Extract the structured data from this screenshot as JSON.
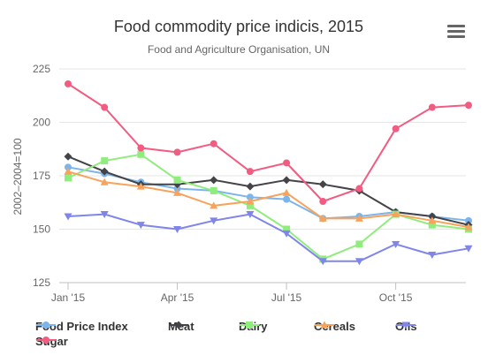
{
  "chart_data": {
    "type": "line",
    "title": "Food commodity price indicis, 2015",
    "subtitle": "Food and Agriculture Organisation, UN",
    "ylabel": "2002–2004=100",
    "xlabel": "",
    "ylim": [
      125,
      225
    ],
    "yticks": [
      125,
      150,
      175,
      200,
      225
    ],
    "x": [
      "2015-01",
      "2015-02",
      "2015-03",
      "2015-04",
      "2015-05",
      "2015-06",
      "2015-07",
      "2015-08",
      "2015-09",
      "2015-10",
      "2015-11",
      "2015-12"
    ],
    "xtick_labels": [
      {
        "x": "2015-01",
        "label": "Jan '15"
      },
      {
        "x": "2015-04",
        "label": "Apr '15"
      },
      {
        "x": "2015-07",
        "label": "Jul '15"
      },
      {
        "x": "2015-10",
        "label": "Oct '15"
      }
    ],
    "grid": true,
    "legend_position": "bottom",
    "series": [
      {
        "name": "Food Price Index",
        "color": "#7cb5ec",
        "marker": "circle",
        "values": [
          179,
          176,
          172,
          169,
          168,
          165,
          164,
          155,
          156,
          158,
          156,
          154
        ]
      },
      {
        "name": "Meat",
        "color": "#434348",
        "marker": "diamond",
        "values": [
          184,
          177,
          171,
          171,
          173,
          170,
          173,
          171,
          168,
          158,
          156,
          152
        ]
      },
      {
        "name": "Dairy",
        "color": "#90ed7d",
        "marker": "square",
        "values": [
          174,
          182,
          185,
          173,
          168,
          161,
          150,
          136,
          143,
          157,
          152,
          150
        ]
      },
      {
        "name": "Cereals",
        "color": "#f7a35c",
        "marker": "triangle",
        "values": [
          177,
          172,
          170,
          167,
          161,
          163,
          167,
          155,
          155,
          157,
          154,
          151
        ]
      },
      {
        "name": "Oils",
        "color": "#8085e9",
        "marker": "triangle-down",
        "values": [
          156,
          157,
          152,
          150,
          154,
          157,
          148,
          135,
          135,
          143,
          138,
          141
        ]
      },
      {
        "name": "Sugar",
        "color": "#f15c80",
        "marker": "circle",
        "values": [
          218,
          207,
          188,
          186,
          190,
          177,
          181,
          163,
          169,
          197,
          207,
          208
        ]
      }
    ]
  }
}
